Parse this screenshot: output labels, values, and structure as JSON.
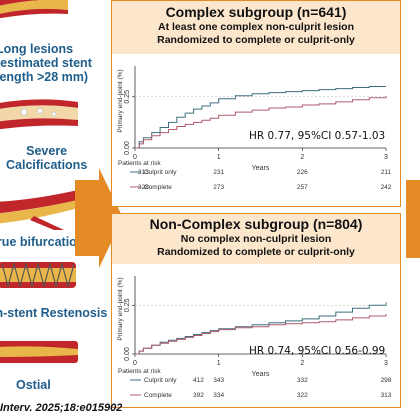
{
  "lesions": [
    {
      "label_lines": [
        "Long lesions",
        "(estimated stent",
        "length >28 mm)"
      ]
    },
    {
      "label_lines": [
        "Severe",
        "Calcifications"
      ]
    },
    {
      "label_lines": [
        "True bifurcation"
      ]
    },
    {
      "label_lines": [
        "In-stent Restenosis"
      ]
    },
    {
      "label_lines": [
        "Ostial"
      ]
    }
  ],
  "colors": {
    "accent_orange": "#e48b25",
    "panel_header_bg": "#fce6cc",
    "label_blue": "#1f5d8a",
    "culprit_only_line": "#3f6e80",
    "complete_line": "#b05a6a",
    "vessel_red": "#c0262a",
    "plaque_yellow": "#e9b64a"
  },
  "panels": [
    {
      "title": "Complex subgroup (n=641)",
      "subtitle_lines": [
        "At least one complex non-culprit lesion",
        "Randomized to complete or culprit-only"
      ],
      "hr_text": "HR 0.77, 95%CI 0.57-1.03",
      "chart_data": {
        "type": "line",
        "ylabel": "Primary end-point (%)",
        "xlabel": "Years",
        "xlim": [
          0,
          3
        ],
        "ylim": [
          0,
          0.4
        ],
        "y_ticks": [
          "0.00",
          "0.25"
        ],
        "x_ticks": [
          "0",
          "1",
          "2",
          "3"
        ],
        "dashed_reference_y": 0.25,
        "series": [
          {
            "name": "Culprit only",
            "x": [
              0,
              0.05,
              0.1,
              0.2,
              0.3,
              0.4,
              0.5,
              0.6,
              0.7,
              0.8,
              0.9,
              1.0,
              1.2,
              1.4,
              1.6,
              1.8,
              2.0,
              2.2,
              2.4,
              2.6,
              2.8,
              3.0
            ],
            "y": [
              0,
              0.03,
              0.05,
              0.075,
              0.1,
              0.125,
              0.15,
              0.17,
              0.19,
              0.205,
              0.22,
              0.24,
              0.255,
              0.265,
              0.27,
              0.275,
              0.28,
              0.285,
              0.29,
              0.295,
              0.3,
              0.3
            ]
          },
          {
            "name": "Complete",
            "x": [
              0,
              0.05,
              0.1,
              0.2,
              0.3,
              0.4,
              0.5,
              0.6,
              0.7,
              0.8,
              0.9,
              1.0,
              1.2,
              1.4,
              1.6,
              1.8,
              2.0,
              2.2,
              2.4,
              2.6,
              2.8,
              3.0
            ],
            "y": [
              0,
              0.02,
              0.04,
              0.06,
              0.075,
              0.09,
              0.105,
              0.115,
              0.125,
              0.135,
              0.145,
              0.16,
              0.175,
              0.185,
              0.195,
              0.2,
              0.21,
              0.215,
              0.225,
              0.235,
              0.245,
              0.255
            ]
          }
        ]
      },
      "risk_table": {
        "header": "Patients at risk",
        "rows": [
          {
            "label": "Culprit only",
            "values": [
              "313",
              "231",
              "226",
              "211"
            ]
          },
          {
            "label": "Complete",
            "values": [
              "328",
              "273",
              "257",
              "242"
            ]
          }
        ]
      }
    },
    {
      "title": "Non-Complex subgroup (n=804)",
      "subtitle_lines": [
        "No complex non-culprit lesion",
        "Randomized to complete or culprit-only"
      ],
      "hr_text": "HR 0.74, 95%CI 0.56-0.99",
      "chart_data": {
        "type": "line",
        "ylabel": "Primary end-point (%)",
        "xlabel": "Years",
        "xlim": [
          0,
          3
        ],
        "ylim": [
          0,
          0.4
        ],
        "y_ticks": [
          "0.00",
          "0.25"
        ],
        "x_ticks": [
          "0",
          "1",
          "2",
          "3"
        ],
        "dashed_reference_y": 0.25,
        "series": [
          {
            "name": "Culprit only",
            "x": [
              0,
              0.05,
              0.1,
              0.2,
              0.3,
              0.4,
              0.5,
              0.6,
              0.7,
              0.8,
              0.9,
              1.0,
              1.2,
              1.4,
              1.6,
              1.8,
              2.0,
              2.2,
              2.4,
              2.6,
              2.8,
              3.0
            ],
            "y": [
              0,
              0.015,
              0.03,
              0.045,
              0.06,
              0.07,
              0.08,
              0.09,
              0.1,
              0.11,
              0.12,
              0.13,
              0.14,
              0.15,
              0.16,
              0.17,
              0.18,
              0.195,
              0.215,
              0.235,
              0.25,
              0.265
            ]
          },
          {
            "name": "Complete",
            "x": [
              0,
              0.05,
              0.1,
              0.2,
              0.3,
              0.4,
              0.5,
              0.6,
              0.7,
              0.8,
              0.9,
              1.0,
              1.2,
              1.4,
              1.6,
              1.8,
              2.0,
              2.2,
              2.4,
              2.6,
              2.8,
              3.0
            ],
            "y": [
              0,
              0.015,
              0.03,
              0.045,
              0.055,
              0.065,
              0.075,
              0.085,
              0.095,
              0.105,
              0.115,
              0.125,
              0.135,
              0.14,
              0.15,
              0.155,
              0.16,
              0.165,
              0.175,
              0.185,
              0.195,
              0.205
            ]
          }
        ]
      },
      "risk_table": {
        "header": "Patients at risk",
        "rows": [
          {
            "label": "Culprit only",
            "values": [
              "412",
              "343",
              "332",
              "298"
            ]
          },
          {
            "label": "Complete",
            "values": [
              "392",
              "334",
              "322",
              "313"
            ]
          }
        ]
      }
    }
  ],
  "citation": "Interv. 2025;18:e015902"
}
